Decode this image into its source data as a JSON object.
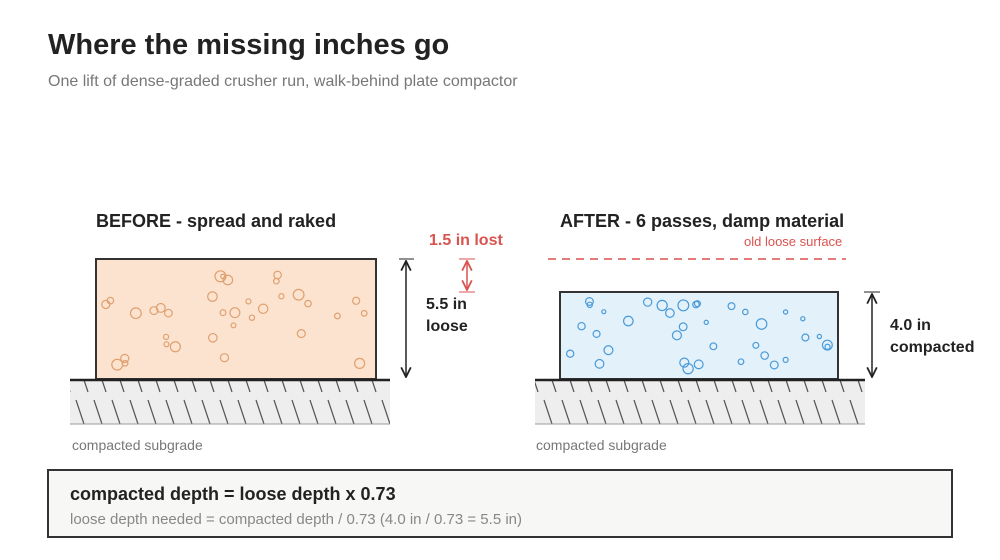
{
  "header": {
    "title": "Where the missing inches go",
    "subtitle": "One lift of dense-graded crusher run, walk-behind plate compactor"
  },
  "before": {
    "label": "BEFORE - spread and raked",
    "depth_value": "5.5 in",
    "depth_unit": "loose",
    "ground": "compacted subgrade"
  },
  "lost": "1.5 in lost",
  "after": {
    "label": "AFTER - 6 passes, damp material",
    "old_surface": "old loose surface",
    "depth_value": "4.0 in",
    "depth_unit": "compacted",
    "ground": "compacted subgrade"
  },
  "formula": {
    "main": "compacted depth = loose depth x 0.73",
    "detail": "loose depth needed = compacted depth / 0.73 (4.0 in / 0.73 = 5.5 in)"
  }
}
